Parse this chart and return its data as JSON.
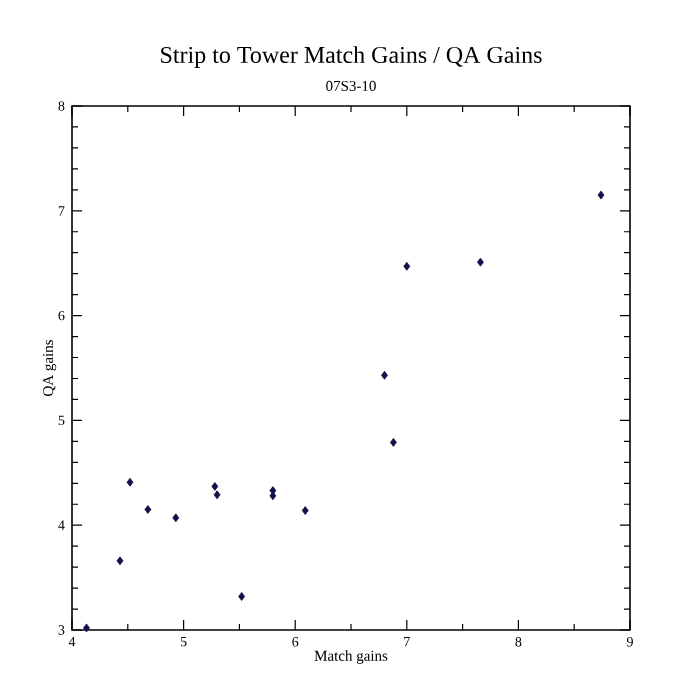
{
  "chart_data": {
    "type": "scatter",
    "title": "Strip to Tower Match Gains / QA Gains",
    "subtitle": "07S3-10",
    "xlabel": "Match gains",
    "ylabel": "QA gains",
    "xlim": [
      4,
      9
    ],
    "ylim": [
      3,
      8
    ],
    "xticks": [
      4,
      5,
      6,
      7,
      8,
      9
    ],
    "yticks": [
      3,
      4,
      5,
      6,
      7,
      8
    ],
    "grid": false,
    "marker": "diamond",
    "series": [
      {
        "color": "#10104a",
        "x": [
          4.13,
          4.43,
          4.52,
          4.68,
          4.93,
          5.28,
          5.3,
          5.52,
          5.8,
          5.8,
          6.09,
          6.8,
          6.88,
          7.0,
          7.66,
          8.74
        ],
        "values": [
          3.02,
          3.66,
          4.41,
          4.15,
          4.07,
          4.37,
          4.29,
          3.32,
          4.33,
          4.28,
          4.14,
          5.43,
          4.79,
          6.47,
          6.51,
          7.15
        ]
      }
    ]
  }
}
